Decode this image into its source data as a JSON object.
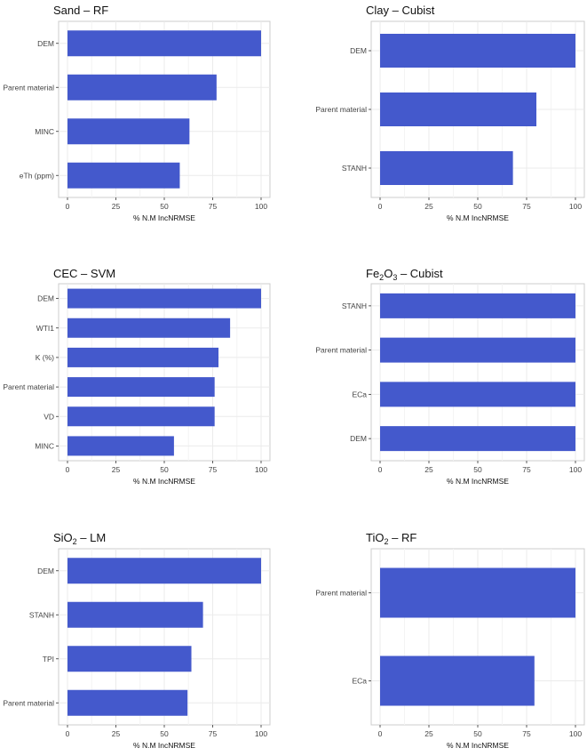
{
  "chart_data": [
    {
      "type": "bar",
      "orientation": "horizontal",
      "title": "Sand – RF",
      "categories": [
        "DEM",
        "Parent material",
        "MINC",
        "eTh (ppm)"
      ],
      "values": [
        100,
        77,
        63,
        58
      ],
      "xlabel": "% N.M IncNRMSE",
      "xlim": [
        0,
        100
      ],
      "xticks": [
        0,
        25,
        50,
        75,
        100
      ],
      "grid": true
    },
    {
      "type": "bar",
      "orientation": "horizontal",
      "title": "Clay – Cubist",
      "categories": [
        "DEM",
        "Parent material",
        "STANH"
      ],
      "values": [
        100,
        80,
        68
      ],
      "xlabel": "% N.M IncNRMSE",
      "xlim": [
        0,
        100
      ],
      "xticks": [
        0,
        25,
        50,
        75,
        100
      ],
      "grid": true
    },
    {
      "type": "bar",
      "orientation": "horizontal",
      "title": "CEC – SVM",
      "categories": [
        "DEM",
        "WTI1",
        "K (%)",
        "Parent material",
        "VD",
        "MINC"
      ],
      "values": [
        100,
        84,
        78,
        76,
        76,
        55
      ],
      "xlabel": "% N.M IncNRMSE",
      "xlim": [
        0,
        100
      ],
      "xticks": [
        0,
        25,
        50,
        75,
        100
      ],
      "grid": true
    },
    {
      "type": "bar",
      "orientation": "horizontal",
      "title": "Fe₂O₃ – Cubist",
      "title_parts": [
        {
          "t": "Fe",
          "sub": false
        },
        {
          "t": "2",
          "sub": true
        },
        {
          "t": "O",
          "sub": false
        },
        {
          "t": "3",
          "sub": true
        },
        {
          "t": " – Cubist",
          "sub": false
        }
      ],
      "categories": [
        "STANH",
        "Parent material",
        "ECa",
        "DEM"
      ],
      "values": [
        100,
        100,
        100,
        100
      ],
      "xlabel": "% N.M IncNRMSE",
      "xlim": [
        0,
        100
      ],
      "xticks": [
        0,
        25,
        50,
        75,
        100
      ],
      "grid": true
    },
    {
      "type": "bar",
      "orientation": "horizontal",
      "title": "SiO₂ – LM",
      "title_parts": [
        {
          "t": "SiO",
          "sub": false
        },
        {
          "t": "2",
          "sub": true
        },
        {
          "t": " – LM",
          "sub": false
        }
      ],
      "categories": [
        "DEM",
        "STANH",
        "TPI",
        "Parent material"
      ],
      "values": [
        100,
        70,
        64,
        62
      ],
      "xlabel": "% N.M IncNRMSE",
      "xlim": [
        0,
        100
      ],
      "xticks": [
        0,
        25,
        50,
        75,
        100
      ],
      "grid": true
    },
    {
      "type": "bar",
      "orientation": "horizontal",
      "title": "TiO₂ – RF",
      "title_parts": [
        {
          "t": "TiO",
          "sub": false
        },
        {
          "t": "2",
          "sub": true
        },
        {
          "t": " – RF",
          "sub": false
        }
      ],
      "categories": [
        "Parent material",
        "ECa"
      ],
      "values": [
        100,
        79
      ],
      "xlabel": "% N.M IncNRMSE",
      "xlim": [
        0,
        100
      ],
      "xticks": [
        0,
        25,
        50,
        75,
        100
      ],
      "grid": true
    }
  ],
  "colors": {
    "bar": "#4459cc",
    "panel_border": "#cccccc",
    "grid": "#ebebeb",
    "text": "#111111",
    "tick_text": "#444444"
  }
}
